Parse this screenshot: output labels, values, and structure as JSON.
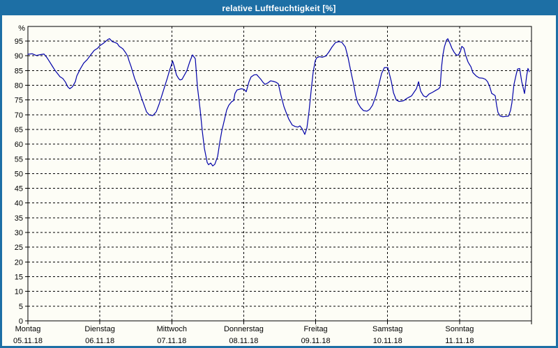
{
  "window": {
    "title": "relative Luftfeuchtigkeit [%]",
    "titlebar_bg": "#1d6fa5",
    "title_color": "#ffffff",
    "page_bg": "#fdfdf6",
    "border_color": "#1d6fa5"
  },
  "chart_data": {
    "type": "line",
    "title": "relative Luftfeuchtigkeit [%]",
    "ylabel": "%",
    "ylim": [
      0,
      100
    ],
    "grid": "dashed",
    "legend_position": "none",
    "line_color": "#0000a8",
    "grid_color": "#000000",
    "label_color": "#000000",
    "yticks": [
      0,
      5,
      10,
      15,
      20,
      25,
      30,
      35,
      40,
      45,
      50,
      55,
      60,
      65,
      70,
      75,
      80,
      85,
      90,
      95
    ],
    "x_days": [
      {
        "name": "Montag",
        "date": "05.11.18"
      },
      {
        "name": "Dienstag",
        "date": "06.11.18"
      },
      {
        "name": "Mittwoch",
        "date": "07.11.18"
      },
      {
        "name": "Donnerstag",
        "date": "08.11.18"
      },
      {
        "name": "Freitag",
        "date": "09.11.18"
      },
      {
        "name": "Samstag",
        "date": "10.11.18"
      },
      {
        "name": "Sonntag",
        "date": "11.11.18"
      }
    ],
    "series": [
      {
        "name": "relative Luftfeuchtigkeit",
        "unit": "%",
        "x_unit": "days since 05.11.18 00:00",
        "points": [
          [
            0.0,
            90.5
          ],
          [
            0.058,
            90.7
          ],
          [
            0.116,
            90.1
          ],
          [
            0.175,
            90.4
          ],
          [
            0.223,
            90.6
          ],
          [
            0.262,
            89.5
          ],
          [
            0.301,
            88.0
          ],
          [
            0.339,
            86.5
          ],
          [
            0.378,
            85.0
          ],
          [
            0.417,
            83.8
          ],
          [
            0.446,
            82.9
          ],
          [
            0.485,
            82.3
          ],
          [
            0.524,
            81.0
          ],
          [
            0.553,
            79.5
          ],
          [
            0.582,
            78.8
          ],
          [
            0.62,
            79.5
          ],
          [
            0.659,
            81.2
          ],
          [
            0.679,
            83.1
          ],
          [
            0.727,
            85.5
          ],
          [
            0.776,
            87.5
          ],
          [
            0.824,
            88.7
          ],
          [
            0.873,
            90.3
          ],
          [
            0.921,
            91.8
          ],
          [
            0.97,
            92.6
          ],
          [
            0.999,
            93.4
          ],
          [
            1.047,
            94.2
          ],
          [
            1.096,
            95.2
          ],
          [
            1.115,
            95.6
          ],
          [
            1.134,
            95.8
          ],
          [
            1.173,
            94.8
          ],
          [
            1.202,
            94.6
          ],
          [
            1.241,
            94.2
          ],
          [
            1.27,
            93.2
          ],
          [
            1.319,
            92.4
          ],
          [
            1.357,
            91.1
          ],
          [
            1.386,
            89.9
          ],
          [
            1.406,
            88.3
          ],
          [
            1.435,
            86.3
          ],
          [
            1.454,
            84.7
          ],
          [
            1.483,
            82.3
          ],
          [
            1.522,
            79.9
          ],
          [
            1.551,
            77.8
          ],
          [
            1.58,
            75.6
          ],
          [
            1.619,
            73.0
          ],
          [
            1.648,
            71.0
          ],
          [
            1.687,
            69.9
          ],
          [
            1.735,
            69.7
          ],
          [
            1.784,
            71.0
          ],
          [
            1.823,
            73.5
          ],
          [
            1.861,
            76.4
          ],
          [
            1.9,
            79.5
          ],
          [
            1.939,
            82.5
          ],
          [
            1.968,
            85.0
          ],
          [
            1.987,
            86.3
          ],
          [
            2.012,
            88.2
          ],
          [
            2.036,
            86.3
          ],
          [
            2.065,
            83.5
          ],
          [
            2.094,
            82.3
          ],
          [
            2.114,
            81.8
          ],
          [
            2.143,
            82.0
          ],
          [
            2.211,
            85.0
          ],
          [
            2.25,
            88.0
          ],
          [
            2.288,
            90.3
          ],
          [
            2.327,
            89.0
          ],
          [
            2.356,
            79.6
          ],
          [
            2.395,
            71.6
          ],
          [
            2.424,
            64.5
          ],
          [
            2.453,
            58.6
          ],
          [
            2.492,
            53.8
          ],
          [
            2.511,
            53.0
          ],
          [
            2.54,
            53.6
          ],
          [
            2.569,
            52.6
          ],
          [
            2.598,
            53.2
          ],
          [
            2.637,
            55.8
          ],
          [
            2.666,
            60.5
          ],
          [
            2.695,
            64.5
          ],
          [
            2.734,
            68.5
          ],
          [
            2.763,
            71.6
          ],
          [
            2.792,
            73.2
          ],
          [
            2.831,
            74.4
          ],
          [
            2.86,
            74.8
          ],
          [
            2.879,
            77.2
          ],
          [
            2.908,
            78.4
          ],
          [
            2.967,
            78.8
          ],
          [
            3.006,
            78.6
          ],
          [
            3.035,
            77.8
          ],
          [
            3.073,
            81.2
          ],
          [
            3.102,
            82.8
          ],
          [
            3.141,
            83.5
          ],
          [
            3.18,
            83.6
          ],
          [
            3.209,
            82.8
          ],
          [
            3.238,
            82.0
          ],
          [
            3.267,
            81.0
          ],
          [
            3.296,
            80.3
          ],
          [
            3.335,
            80.8
          ],
          [
            3.374,
            81.5
          ],
          [
            3.413,
            81.3
          ],
          [
            3.451,
            81.0
          ],
          [
            3.481,
            80.5
          ],
          [
            3.519,
            76.4
          ],
          [
            3.558,
            72.8
          ],
          [
            3.587,
            70.9
          ],
          [
            3.626,
            68.5
          ],
          [
            3.674,
            66.5
          ],
          [
            3.713,
            66.0
          ],
          [
            3.752,
            65.8
          ],
          [
            3.781,
            66.2
          ],
          [
            3.81,
            65.3
          ],
          [
            3.849,
            63.3
          ],
          [
            3.878,
            65.5
          ],
          [
            3.907,
            71.0
          ],
          [
            3.936,
            78.0
          ],
          [
            3.965,
            84.5
          ],
          [
            3.994,
            88.3
          ],
          [
            4.014,
            89.3
          ],
          [
            4.053,
            89.7
          ],
          [
            4.091,
            89.5
          ],
          [
            4.14,
            89.9
          ],
          [
            4.179,
            91.1
          ],
          [
            4.227,
            93.0
          ],
          [
            4.276,
            94.5
          ],
          [
            4.324,
            94.8
          ],
          [
            4.363,
            94.6
          ],
          [
            4.412,
            93.0
          ],
          [
            4.45,
            89.4
          ],
          [
            4.489,
            84.7
          ],
          [
            4.528,
            80.3
          ],
          [
            4.557,
            76.4
          ],
          [
            4.586,
            74.0
          ],
          [
            4.625,
            72.4
          ],
          [
            4.664,
            71.4
          ],
          [
            4.712,
            71.2
          ],
          [
            4.751,
            71.8
          ],
          [
            4.79,
            73.2
          ],
          [
            4.838,
            76.4
          ],
          [
            4.877,
            80.0
          ],
          [
            4.916,
            84.0
          ],
          [
            4.955,
            86.0
          ],
          [
            5.003,
            86.0
          ],
          [
            5.023,
            84.0
          ],
          [
            5.052,
            81.2
          ],
          [
            5.081,
            77.5
          ],
          [
            5.12,
            75.0
          ],
          [
            5.158,
            74.5
          ],
          [
            5.197,
            74.6
          ],
          [
            5.226,
            74.8
          ],
          [
            5.265,
            75.5
          ],
          [
            5.333,
            76.4
          ],
          [
            5.4,
            78.8
          ],
          [
            5.43,
            81.2
          ],
          [
            5.459,
            78.0
          ],
          [
            5.498,
            76.4
          ],
          [
            5.536,
            76.0
          ],
          [
            5.575,
            77.0
          ],
          [
            5.624,
            77.6
          ],
          [
            5.672,
            78.3
          ],
          [
            5.711,
            78.8
          ],
          [
            5.731,
            79.5
          ],
          [
            5.75,
            86.3
          ],
          [
            5.769,
            90.3
          ],
          [
            5.789,
            93.0
          ],
          [
            5.818,
            95.3
          ],
          [
            5.837,
            95.8
          ],
          [
            5.866,
            94.3
          ],
          [
            5.895,
            92.5
          ],
          [
            5.925,
            91.2
          ],
          [
            5.954,
            90.3
          ],
          [
            5.983,
            90.2
          ],
          [
            6.012,
            91.5
          ],
          [
            6.031,
            93.2
          ],
          [
            6.06,
            92.6
          ],
          [
            6.089,
            89.9
          ],
          [
            6.118,
            87.9
          ],
          [
            6.137,
            87.1
          ],
          [
            6.157,
            86.3
          ],
          [
            6.186,
            84.3
          ],
          [
            6.234,
            83.1
          ],
          [
            6.273,
            82.5
          ],
          [
            6.321,
            82.4
          ],
          [
            6.36,
            82.0
          ],
          [
            6.389,
            81.2
          ],
          [
            6.418,
            79.6
          ],
          [
            6.447,
            77.2
          ],
          [
            6.476,
            76.8
          ],
          [
            6.496,
            76.4
          ],
          [
            6.515,
            73.2
          ],
          [
            6.534,
            70.8
          ],
          [
            6.563,
            69.6
          ],
          [
            6.602,
            69.3
          ],
          [
            6.641,
            69.4
          ],
          [
            6.68,
            69.5
          ],
          [
            6.709,
            71.5
          ],
          [
            6.728,
            74.0
          ],
          [
            6.757,
            80.3
          ],
          [
            6.786,
            83.5
          ],
          [
            6.806,
            85.5
          ],
          [
            6.835,
            85.7
          ],
          [
            6.864,
            81.2
          ],
          [
            6.903,
            77.2
          ],
          [
            6.932,
            83.1
          ],
          [
            6.951,
            85.7
          ],
          [
            6.971,
            84.6
          ]
        ]
      }
    ]
  }
}
